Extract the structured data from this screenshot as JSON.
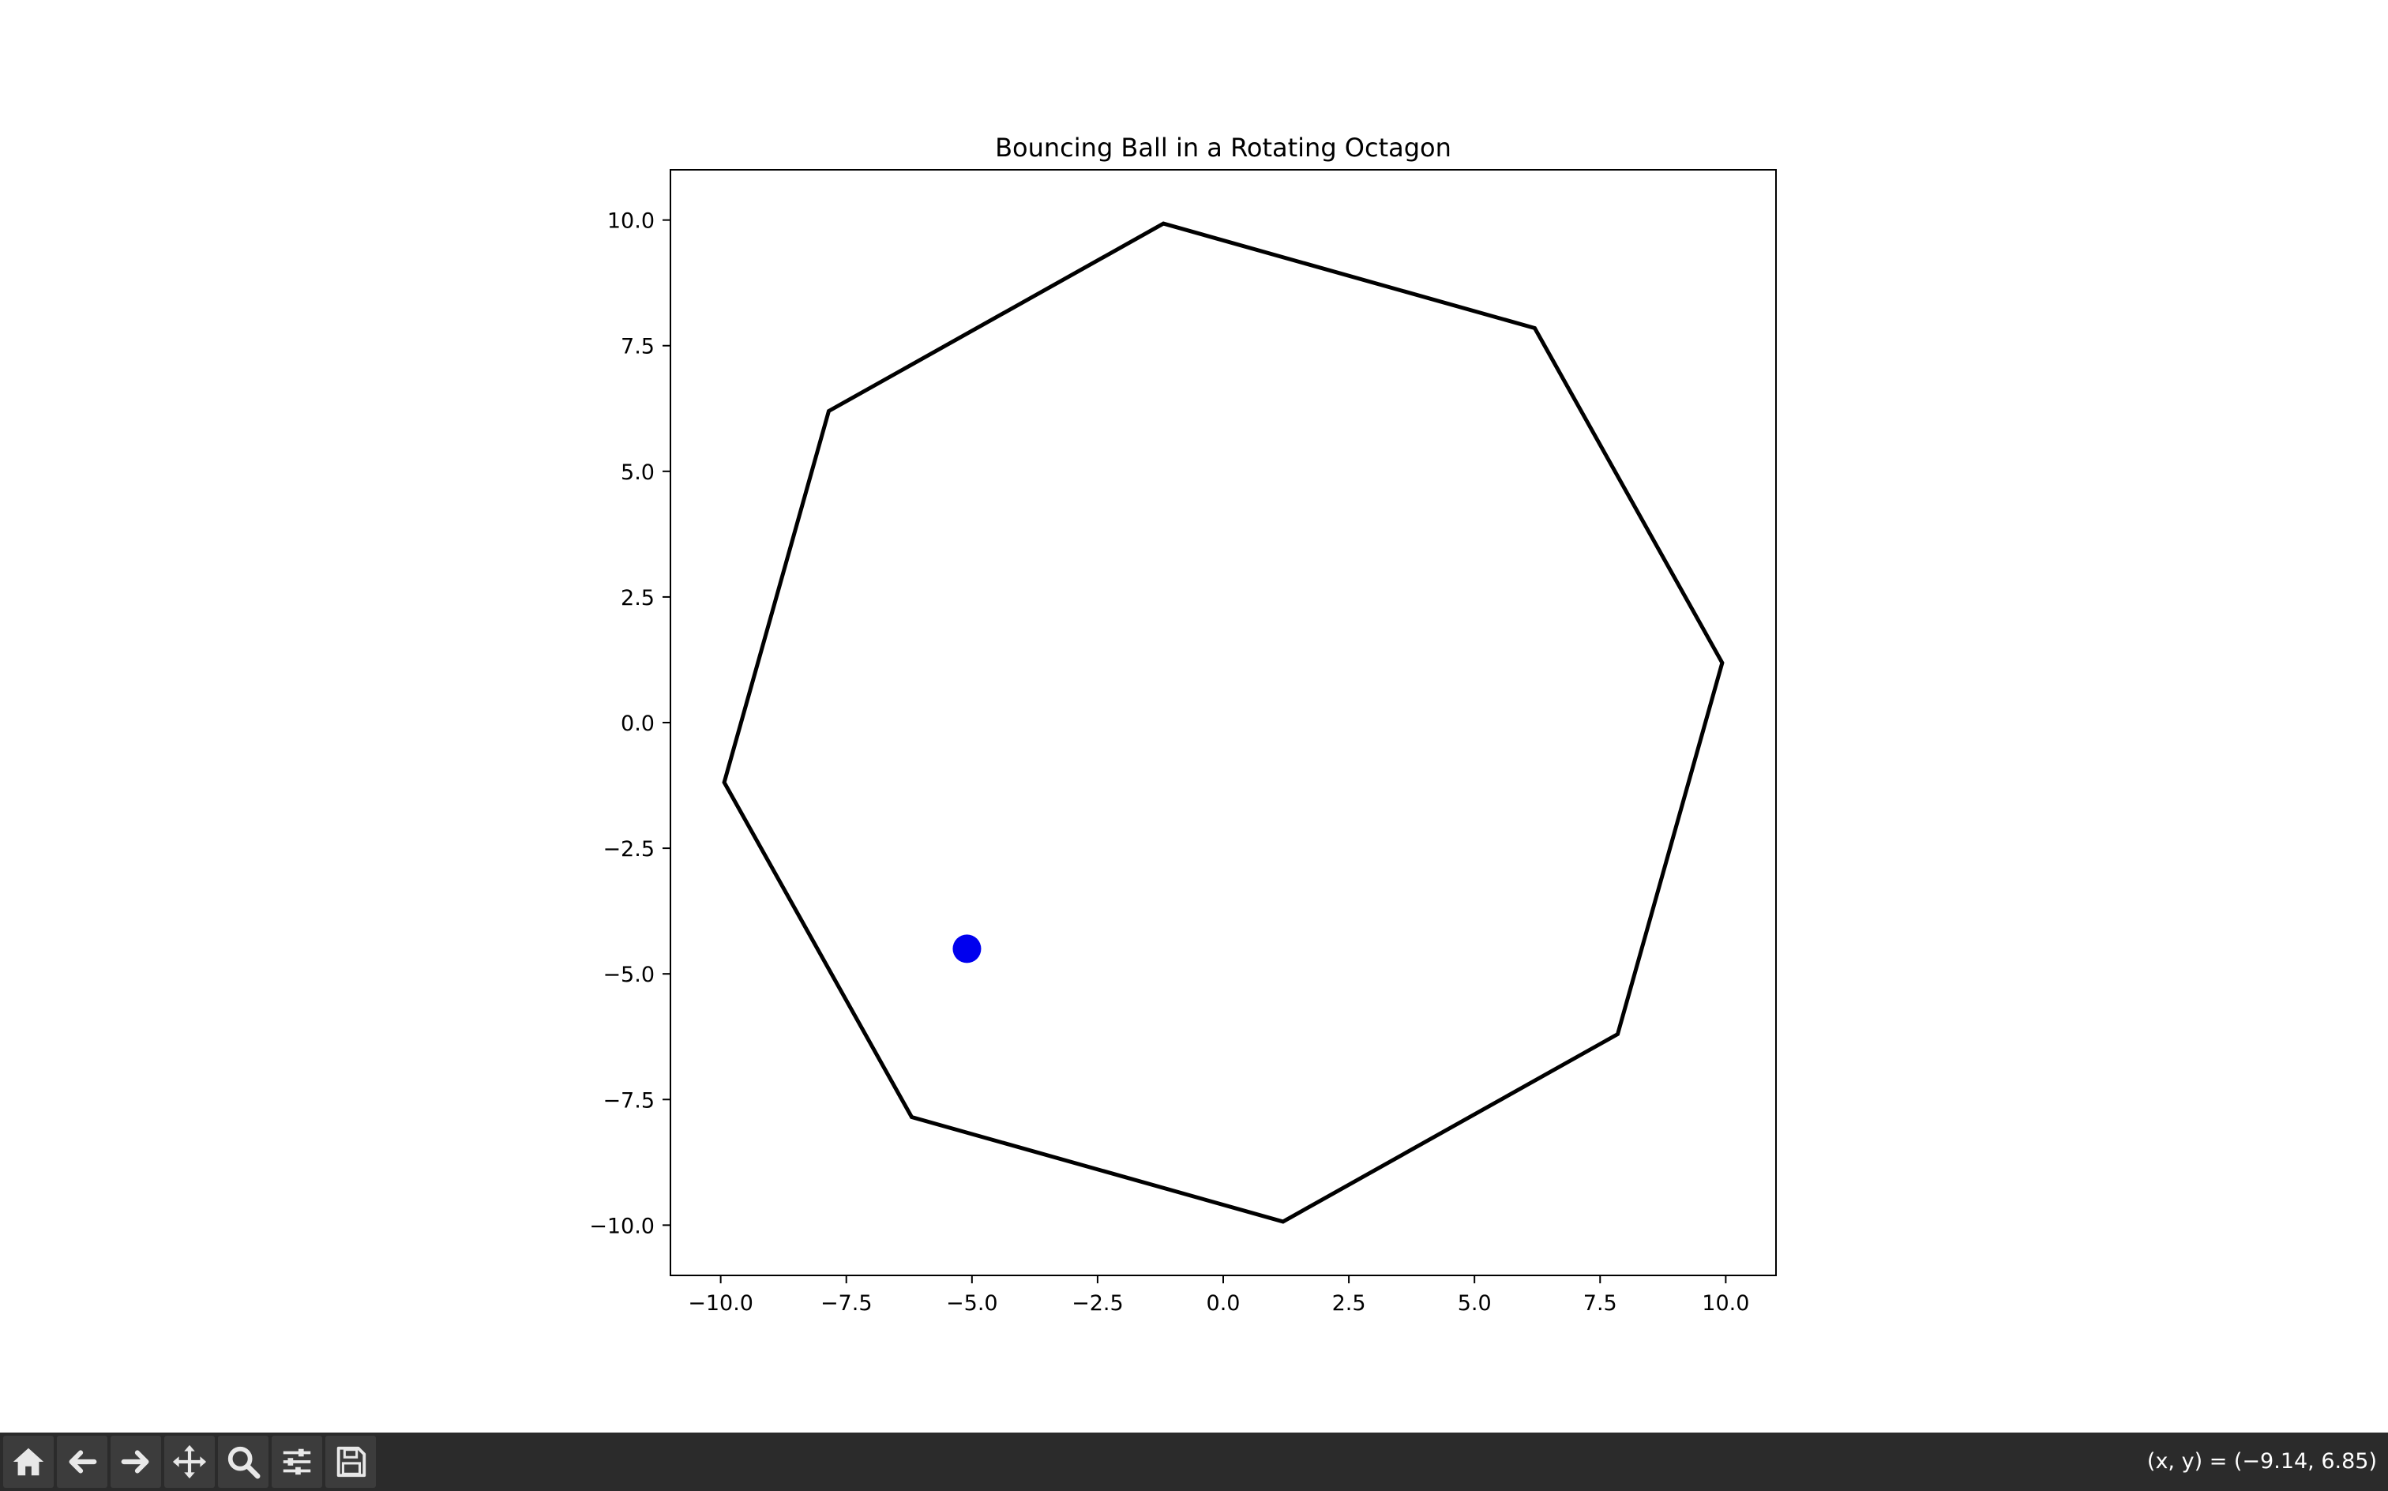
{
  "chart_data": {
    "type": "line",
    "title": "Bouncing Ball in a Rotating Octagon",
    "xlabel": "",
    "ylabel": "",
    "xlim": [
      -11,
      11
    ],
    "ylim": [
      -11,
      11
    ],
    "x_ticks": [
      -10.0,
      -7.5,
      -5.0,
      -2.5,
      0.0,
      2.5,
      5.0,
      7.5,
      10.0
    ],
    "y_ticks": [
      -10.0,
      -7.5,
      -5.0,
      -2.5,
      0.0,
      2.5,
      5.0,
      7.5,
      10.0
    ],
    "x_tick_labels": [
      "−10.0",
      "−7.5",
      "−5.0",
      "−2.5",
      "0.0",
      "2.5",
      "5.0",
      "7.5",
      "10.0"
    ],
    "y_tick_labels": [
      "−10.0",
      "−7.5",
      "−5.0",
      "−2.5",
      "0.0",
      "2.5",
      "5.0",
      "7.5",
      "10.0"
    ],
    "grid": false,
    "octagon": {
      "color": "#000000",
      "vertices": [
        [
          9.93,
          1.19
        ],
        [
          6.2,
          7.85
        ],
        [
          -1.19,
          9.93
        ],
        [
          -7.85,
          6.2
        ],
        [
          -9.93,
          -1.19
        ],
        [
          -6.2,
          -7.85
        ],
        [
          1.19,
          -9.93
        ],
        [
          7.85,
          -6.2
        ]
      ]
    },
    "ball": {
      "x": -5.1,
      "y": -4.5,
      "radius": 0.3,
      "color": "#0000ee"
    }
  },
  "toolbar": {
    "buttons": [
      {
        "name": "home-button",
        "icon": "home-icon"
      },
      {
        "name": "back-button",
        "icon": "back-arrow-icon"
      },
      {
        "name": "forward-button",
        "icon": "forward-arrow-icon"
      },
      {
        "name": "pan-button",
        "icon": "move-icon"
      },
      {
        "name": "zoom-button",
        "icon": "magnifier-icon"
      },
      {
        "name": "configure-subplots-button",
        "icon": "sliders-icon"
      },
      {
        "name": "save-button",
        "icon": "floppy-disk-icon"
      }
    ],
    "coord_readout": "(x, y) = (−9.14, 6.85)"
  }
}
